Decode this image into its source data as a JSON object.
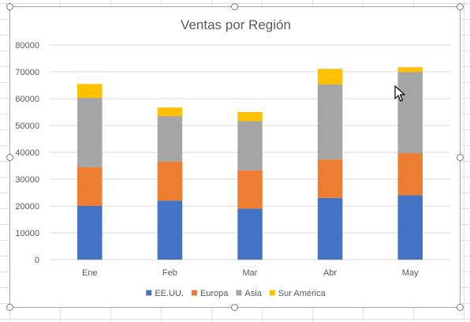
{
  "chart_data": {
    "type": "bar",
    "stacked": true,
    "title": "Ventas por Región",
    "categories": [
      "Ene",
      "Feb",
      "Mar",
      "Abr",
      "May"
    ],
    "series": [
      {
        "name": "EE.UU.",
        "color": "#4472c4",
        "values": [
          20000,
          22000,
          19000,
          23000,
          24000
        ]
      },
      {
        "name": "Europa",
        "color": "#ed7d31",
        "values": [
          14500,
          14500,
          14300,
          14300,
          15700
        ]
      },
      {
        "name": "Asia",
        "color": "#a5a5a5",
        "values": [
          25800,
          17000,
          18300,
          28000,
          30200
        ]
      },
      {
        "name": "Sur América",
        "color": "#ffc000",
        "values": [
          5200,
          3200,
          3400,
          5800,
          1800
        ]
      }
    ],
    "ylim": [
      0,
      80000
    ],
    "yticks": [
      0,
      10000,
      20000,
      30000,
      40000,
      50000,
      60000,
      70000,
      80000
    ],
    "grid": true,
    "legend": "bottom"
  }
}
